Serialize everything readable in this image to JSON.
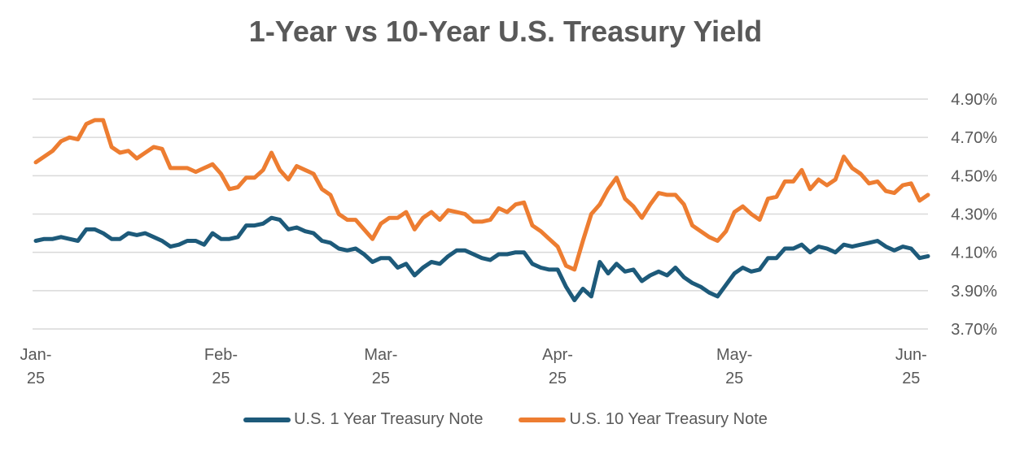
{
  "chart_data": {
    "type": "line",
    "title": "1-Year vs 10-Year U.S. Treasury Yield",
    "xlabel": "",
    "ylabel": "",
    "ylim": [
      3.7,
      4.9
    ],
    "yticks": [
      "4.90%",
      "4.70%",
      "4.50%",
      "4.30%",
      "4.10%",
      "3.90%",
      "3.70%"
    ],
    "ytick_values": [
      4.9,
      4.7,
      4.5,
      4.3,
      4.1,
      3.9,
      3.7
    ],
    "y_axis_side": "right",
    "grid": true,
    "legend_position": "bottom",
    "x_ticks": [
      {
        "line1": "Jan-",
        "line2": "25",
        "index": 0
      },
      {
        "line1": "Feb-",
        "line2": "25",
        "index": 22
      },
      {
        "line1": "Mar-",
        "line2": "25",
        "index": 41
      },
      {
        "line1": "Apr-",
        "line2": "25",
        "index": 62
      },
      {
        "line1": "May-",
        "line2": "25",
        "index": 83
      },
      {
        "line1": "Jun-",
        "line2": "25",
        "index": 104
      }
    ],
    "series": [
      {
        "name": "U.S. 1 Year Treasury Note",
        "color": "#1d5a7a",
        "values": [
          4.16,
          4.17,
          4.17,
          4.18,
          4.17,
          4.16,
          4.22,
          4.22,
          4.2,
          4.17,
          4.17,
          4.2,
          4.19,
          4.2,
          4.18,
          4.16,
          4.13,
          4.14,
          4.16,
          4.16,
          4.14,
          4.2,
          4.17,
          4.17,
          4.18,
          4.24,
          4.24,
          4.25,
          4.28,
          4.27,
          4.22,
          4.23,
          4.21,
          4.2,
          4.16,
          4.15,
          4.12,
          4.11,
          4.12,
          4.09,
          4.05,
          4.07,
          4.07,
          4.02,
          4.04,
          3.98,
          4.02,
          4.05,
          4.04,
          4.08,
          4.11,
          4.11,
          4.09,
          4.07,
          4.06,
          4.09,
          4.09,
          4.1,
          4.1,
          4.04,
          4.02,
          4.01,
          4.01,
          3.92,
          3.85,
          3.91,
          3.87,
          4.05,
          3.99,
          4.04,
          4.0,
          4.01,
          3.95,
          3.98,
          4.0,
          3.98,
          4.02,
          3.97,
          3.94,
          3.92,
          3.89,
          3.87,
          3.93,
          3.99,
          4.02,
          4.0,
          4.01,
          4.07,
          4.07,
          4.12,
          4.12,
          4.14,
          4.1,
          4.13,
          4.12,
          4.1,
          4.14,
          4.13,
          4.14,
          4.15,
          4.16,
          4.13,
          4.11,
          4.13,
          4.12,
          4.07,
          4.08
        ]
      },
      {
        "name": "U.S. 10 Year Treasury Note",
        "color": "#ed7d31",
        "values": [
          4.57,
          4.6,
          4.63,
          4.68,
          4.7,
          4.69,
          4.77,
          4.79,
          4.79,
          4.65,
          4.62,
          4.63,
          4.59,
          4.62,
          4.65,
          4.64,
          4.54,
          4.54,
          4.54,
          4.52,
          4.54,
          4.56,
          4.51,
          4.43,
          4.44,
          4.49,
          4.49,
          4.53,
          4.62,
          4.53,
          4.48,
          4.55,
          4.53,
          4.51,
          4.43,
          4.4,
          4.3,
          4.27,
          4.27,
          4.22,
          4.17,
          4.25,
          4.28,
          4.28,
          4.31,
          4.22,
          4.28,
          4.31,
          4.27,
          4.32,
          4.31,
          4.3,
          4.26,
          4.26,
          4.27,
          4.33,
          4.31,
          4.35,
          4.36,
          4.24,
          4.21,
          4.17,
          4.13,
          4.03,
          4.01,
          4.16,
          4.3,
          4.35,
          4.43,
          4.49,
          4.38,
          4.34,
          4.28,
          4.35,
          4.41,
          4.4,
          4.4,
          4.35,
          4.24,
          4.21,
          4.18,
          4.16,
          4.21,
          4.31,
          4.34,
          4.3,
          4.27,
          4.38,
          4.39,
          4.47,
          4.47,
          4.53,
          4.43,
          4.48,
          4.45,
          4.48,
          4.6,
          4.54,
          4.51,
          4.46,
          4.47,
          4.42,
          4.41,
          4.45,
          4.46,
          4.37,
          4.4
        ]
      }
    ]
  }
}
